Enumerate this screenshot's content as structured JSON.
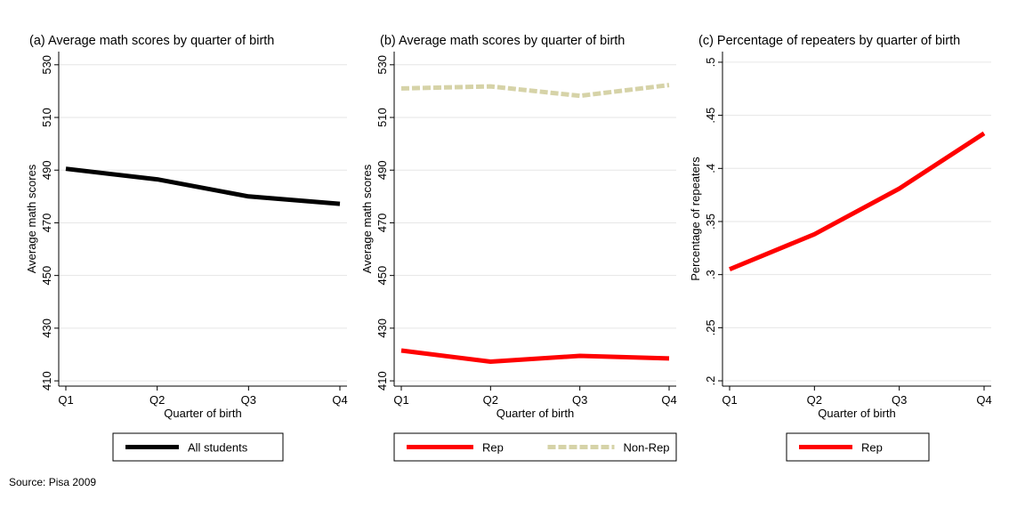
{
  "source_note": "Source: Pisa 2009",
  "colors": {
    "all_students": "#000000",
    "rep": "#ff0000",
    "non_rep": "#d6d3a8",
    "grid": "#e6e6e6",
    "axis": "#000000"
  },
  "chart_data": [
    {
      "type": "line",
      "title": "(a) Average math scores by quarter of birth",
      "xlabel": "Quarter of birth",
      "ylabel": "Average math scores",
      "categories": [
        "Q1",
        "Q2",
        "Q3",
        "Q4"
      ],
      "yticks": [
        410,
        430,
        450,
        470,
        490,
        510,
        530
      ],
      "ytick_labels": [
        "410",
        "430",
        "450",
        "470",
        "490",
        "510",
        "530"
      ],
      "ylim": [
        408,
        535
      ],
      "grid": true,
      "legend_position": "bottom",
      "series": [
        {
          "name": "All students",
          "values": [
            490.5,
            486.5,
            480.0,
            477.2
          ],
          "color": "#000000",
          "dashed": false
        }
      ]
    },
    {
      "type": "line",
      "title": "(b) Average math scores by quarter of birth",
      "xlabel": "Quarter of birth",
      "ylabel": "Average math scores",
      "categories": [
        "Q1",
        "Q2",
        "Q3",
        "Q4"
      ],
      "yticks": [
        410,
        430,
        450,
        470,
        490,
        510,
        530
      ],
      "ytick_labels": [
        "410",
        "430",
        "450",
        "470",
        "490",
        "510",
        "530"
      ],
      "ylim": [
        408,
        535
      ],
      "grid": true,
      "legend_position": "bottom",
      "series": [
        {
          "name": "Rep",
          "values": [
            421.5,
            417.3,
            419.5,
            418.5
          ],
          "color": "#ff0000",
          "dashed": false
        },
        {
          "name": "Non-Rep",
          "values": [
            521.0,
            521.8,
            518.2,
            522.3
          ],
          "color": "#d6d3a8",
          "dashed": true
        }
      ]
    },
    {
      "type": "line",
      "title": "(c) Percentage of repeaters by quarter of birth",
      "xlabel": "Quarter of birth",
      "ylabel": "Percentage of repeaters",
      "categories": [
        "Q1",
        "Q2",
        "Q3",
        "Q4"
      ],
      "yticks": [
        0.2,
        0.25,
        0.3,
        0.35,
        0.4,
        0.45,
        0.5
      ],
      "ytick_labels": [
        ".2",
        ".25",
        ".3",
        ".35",
        ".4",
        ".45",
        ".5"
      ],
      "ylim": [
        0.195,
        0.51
      ],
      "grid": true,
      "legend_position": "bottom",
      "series": [
        {
          "name": "Rep",
          "values": [
            0.305,
            0.338,
            0.381,
            0.433
          ],
          "color": "#ff0000",
          "dashed": false
        }
      ]
    }
  ]
}
